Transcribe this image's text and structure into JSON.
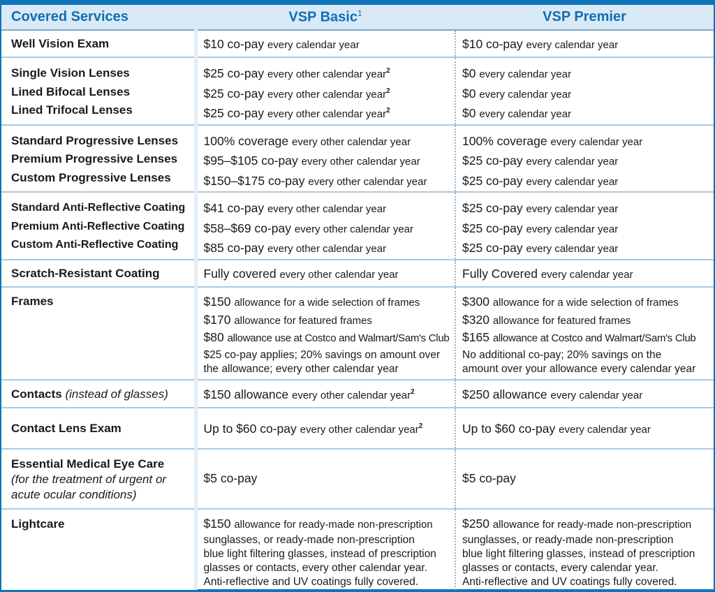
{
  "header": {
    "col1": "Covered Services",
    "col2": "VSP Basic",
    "col2_sup": "1",
    "col3": "VSP Premier"
  },
  "rows": {
    "exam": {
      "svc": "Well Vision Exam",
      "basic": [
        "$10 co-pay",
        "every calendar year"
      ],
      "premier": [
        "$10 co-pay",
        "every calendar year"
      ]
    },
    "lenses": {
      "svc": [
        "Single Vision Lenses",
        "Lined Bifocal Lenses",
        "Lined Trifocal Lenses"
      ],
      "basic": [
        [
          "$25 co-pay",
          "every other calendar year",
          "2"
        ],
        [
          "$25 co-pay",
          "every other calendar year",
          "2"
        ],
        [
          "$25 co-pay",
          "every other calendar year",
          "2"
        ]
      ],
      "premier": [
        [
          "$0",
          "every calendar year"
        ],
        [
          "$0",
          "every calendar year"
        ],
        [
          "$0",
          "every calendar year"
        ]
      ]
    },
    "progressive": {
      "svc": [
        "Standard Progressive Lenses",
        "Premium Progressive Lenses",
        "Custom Progressive Lenses"
      ],
      "basic": [
        [
          "100% coverage",
          "every other calendar year"
        ],
        [
          "$95–$105 co-pay",
          "every other calendar year"
        ],
        [
          "$150–$175 co-pay",
          "every other calendar year"
        ]
      ],
      "premier": [
        [
          "100% coverage",
          "every calendar year"
        ],
        [
          "$25 co-pay",
          "every calendar year"
        ],
        [
          "$25 co-pay",
          "every calendar year"
        ]
      ]
    },
    "antireflective": {
      "svc": [
        "Standard Anti-Reflective Coating",
        "Premium Anti-Reflective Coating",
        "Custom Anti-Reflective Coating"
      ],
      "basic": [
        [
          "$41 co-pay",
          "every other calendar year"
        ],
        [
          "$58–$69 co-pay",
          "every other calendar year"
        ],
        [
          "$85 co-pay",
          "every other calendar year"
        ]
      ],
      "premier": [
        [
          "$25 co-pay",
          "every calendar year"
        ],
        [
          "$25 co-pay",
          "every calendar year"
        ],
        [
          "$25 co-pay",
          "every calendar year"
        ]
      ]
    },
    "scratch": {
      "svc": "Scratch-Resistant Coating",
      "basic": [
        "Fully covered",
        "every other calendar year"
      ],
      "premier": [
        "Fully Covered",
        "every calendar year"
      ]
    },
    "frames": {
      "svc": "Frames",
      "basic": {
        "l1": [
          "$150",
          "allowance for a wide selection of frames"
        ],
        "l2": [
          "$170",
          "allowance for featured frames"
        ],
        "l3": [
          "$80",
          "allowance use at Costco and Walmart/Sam's Club"
        ],
        "l4": "$25 co-pay applies; 20% savings on amount over",
        "l5": "the allowance; every other calendar year"
      },
      "premier": {
        "l1": [
          "$300",
          "allowance for a wide selection of frames"
        ],
        "l2": [
          "$320",
          "allowance for featured frames"
        ],
        "l3": [
          "$165",
          "allowance at Costco and Walmart/Sam's Club"
        ],
        "l4": "No additional co-pay; 20% savings on the",
        "l5": "amount over your allowance every calendar year"
      }
    },
    "contacts": {
      "svc": "Contacts",
      "svc_note": "(instead of glasses)",
      "basic": [
        "$150 allowance",
        "every other calendar year",
        "2"
      ],
      "premier": [
        "$250 allowance",
        "every calendar year"
      ]
    },
    "contact_exam": {
      "svc": "Contact Lens Exam",
      "basic": [
        "Up to $60 co-pay",
        "every other calendar year",
        "2"
      ],
      "premier": [
        "Up to $60 co-pay",
        "every calendar year"
      ]
    },
    "medical": {
      "svc": "Essential Medical Eye Care",
      "svc_note1": "(for the treatment of urgent or",
      "svc_note2": "acute ocular conditions)",
      "basic": "$5 co-pay",
      "premier": "$5 co-pay"
    },
    "lightcare": {
      "svc": "Lightcare",
      "basic": {
        "l1": [
          "$150",
          "allowance for ready-made non-prescription"
        ],
        "l2": "sunglasses, or ready-made non-prescription",
        "l3": "blue light filtering glasses, instead of prescription",
        "l4": "glasses or contacts, every other calendar year.",
        "l5": "Anti-reflective and UV coatings fully covered."
      },
      "premier": {
        "l1": [
          "$250",
          "allowance for ready-made non-prescription"
        ],
        "l2": "sunglasses, or ready-made non-prescription",
        "l3": "blue light filtering glasses, instead of prescription",
        "l4": "glasses or contacts, every calendar year.",
        "l5": "Anti-reflective and UV coatings fully covered."
      }
    }
  }
}
